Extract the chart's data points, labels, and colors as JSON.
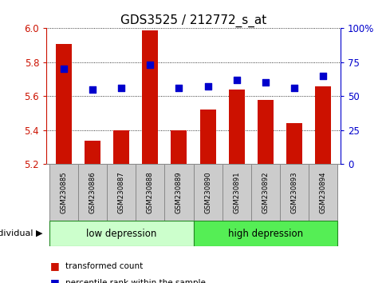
{
  "title": "GDS3525 / 212772_s_at",
  "samples": [
    "GSM230885",
    "GSM230886",
    "GSM230887",
    "GSM230888",
    "GSM230889",
    "GSM230890",
    "GSM230891",
    "GSM230892",
    "GSM230893",
    "GSM230894"
  ],
  "transformed_count": [
    5.91,
    5.34,
    5.4,
    5.99,
    5.4,
    5.52,
    5.64,
    5.58,
    5.44,
    5.66
  ],
  "percentile_rank": [
    70,
    55,
    56,
    73,
    56,
    57,
    62,
    60,
    56,
    65
  ],
  "ylim_left": [
    5.2,
    6.0
  ],
  "ylim_right": [
    0,
    100
  ],
  "yticks_left": [
    5.2,
    5.4,
    5.6,
    5.8,
    6.0
  ],
  "yticks_right": [
    0,
    25,
    50,
    75,
    100
  ],
  "ytick_labels_right": [
    "0",
    "25",
    "50",
    "75",
    "100%"
  ],
  "bar_color": "#cc1100",
  "dot_color": "#0000cc",
  "group_labels": [
    "low depression",
    "high depression"
  ],
  "group_split": 5,
  "group_color_left": "#ccffcc",
  "group_color_right": "#55ee55",
  "group_border_color": "#228822",
  "legend_labels": [
    "transformed count",
    "percentile rank within the sample"
  ],
  "individual_label": "individual",
  "title_fontsize": 11,
  "bar_width": 0.55,
  "dot_size": 35,
  "grid_linestyle": "dotted",
  "left_axis_color": "#cc1100",
  "right_axis_color": "#0000cc",
  "sample_box_color": "#cccccc",
  "sample_box_edge": "#888888"
}
